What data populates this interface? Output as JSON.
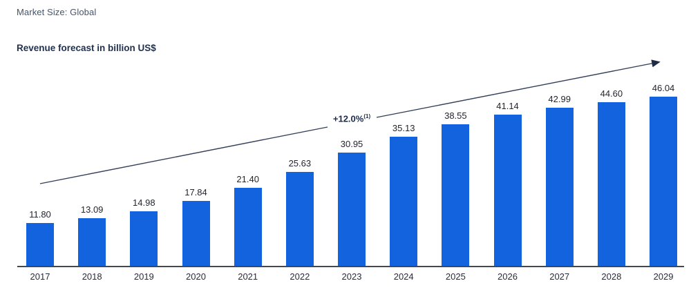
{
  "header": {
    "market_size_label": "Market Size: Global",
    "chart_title": "Revenue forecast in billion US$"
  },
  "chart_data": {
    "type": "bar",
    "title": "Revenue forecast in billion US$",
    "categories": [
      "2017",
      "2018",
      "2019",
      "2020",
      "2021",
      "2022",
      "2023",
      "2024",
      "2025",
      "2026",
      "2027",
      "2028",
      "2029"
    ],
    "values": [
      11.8,
      13.09,
      14.98,
      17.84,
      21.4,
      25.63,
      30.95,
      35.13,
      38.55,
      41.14,
      42.99,
      44.6,
      46.04
    ],
    "xlabel": "",
    "ylabel": "Revenue in billion US$",
    "ylim": [
      0,
      48
    ],
    "grid": false,
    "legend": "none",
    "bar_color": "#1363df",
    "annotation": {
      "text": "+12.0%",
      "footnote_marker": "(1)",
      "meaning": "CAGR trend arrow"
    }
  }
}
